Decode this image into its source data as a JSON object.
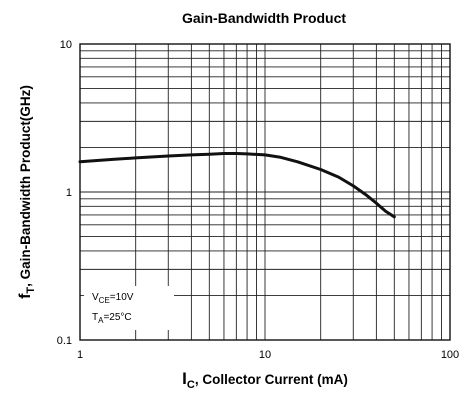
{
  "chart_data": {
    "type": "line",
    "title": "Gain-Bandwidth Product",
    "xlabel": {
      "main": "I",
      "sub": "C",
      "rest": ", Collector Current (mA)"
    },
    "ylabel": {
      "main": "f",
      "sub": "T",
      "rest": ", Gain-Bandwidth Product(GHz)"
    },
    "x_scale": "log",
    "y_scale": "log",
    "xlim": [
      1,
      100
    ],
    "ylim": [
      0.1,
      10
    ],
    "x_ticks": [
      "1",
      "10",
      "100"
    ],
    "y_ticks": [
      "0.1",
      "1",
      "10"
    ],
    "grid": true,
    "annotations": [
      {
        "main": "V",
        "sub": "CE",
        "rest": "=10V"
      },
      {
        "main": "T",
        "sub": "A",
        "rest": "=25°C"
      }
    ],
    "series": [
      {
        "x": [
          1,
          1.5,
          2,
          3,
          4,
          5,
          6,
          7,
          8,
          10,
          12,
          15,
          20,
          25,
          30,
          35,
          40,
          45,
          50
        ],
        "y": [
          1.6,
          1.66,
          1.7,
          1.75,
          1.78,
          1.8,
          1.82,
          1.82,
          1.81,
          1.78,
          1.72,
          1.6,
          1.42,
          1.26,
          1.1,
          0.96,
          0.84,
          0.74,
          0.68
        ]
      }
    ]
  }
}
